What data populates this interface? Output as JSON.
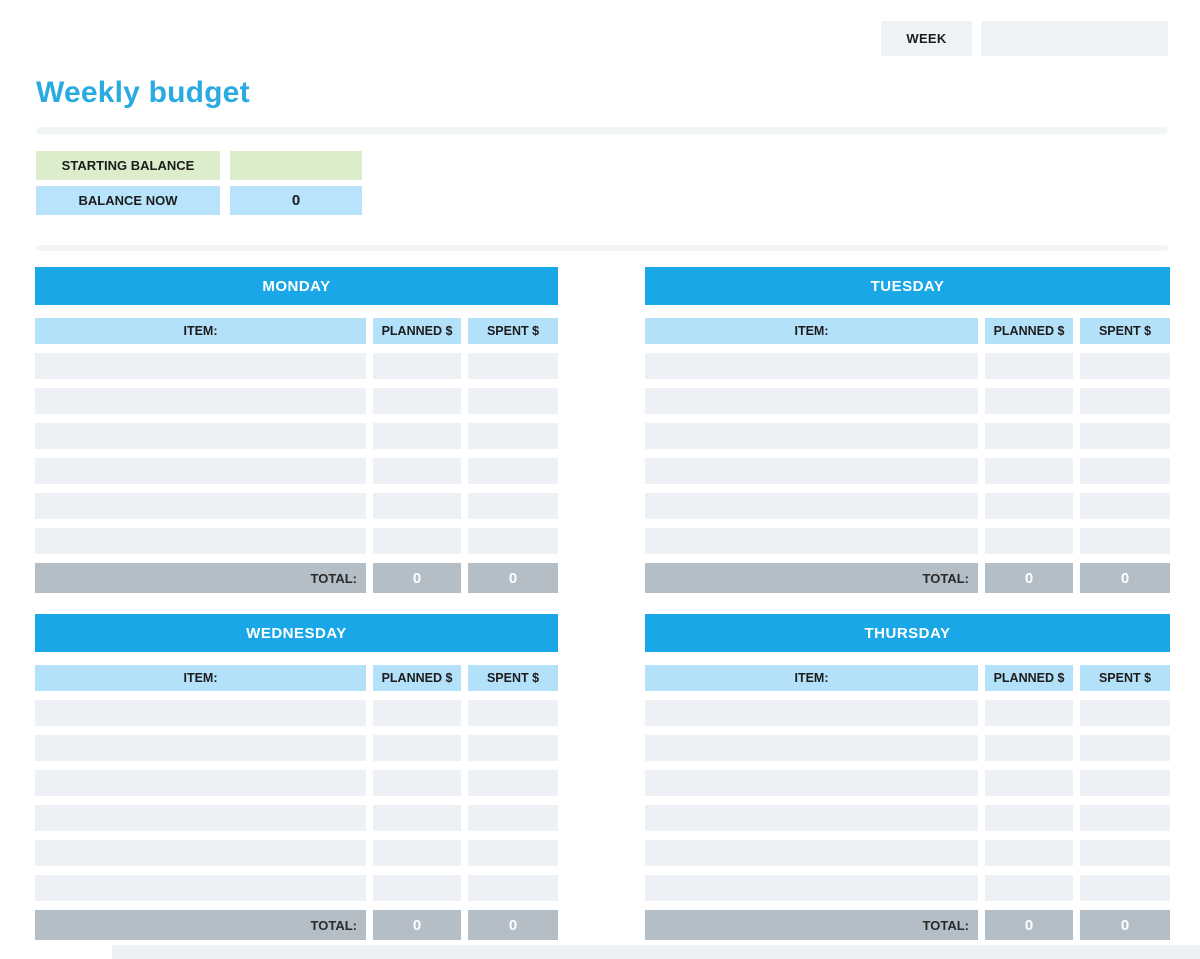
{
  "header": {
    "week_label": "WEEK",
    "week_value": ""
  },
  "title": "Weekly budget",
  "balance": {
    "starting_label": "STARTING BALANCE",
    "starting_value": "",
    "now_label": "BALANCE NOW",
    "now_value": "0"
  },
  "table_template": {
    "item_header": "ITEM:",
    "planned_header": "PLANNED $",
    "spent_header": "SPENT $",
    "total_label": "TOTAL:",
    "empty_rows": 6
  },
  "days": [
    {
      "name": "MONDAY",
      "total_planned": "0",
      "total_spent": "0"
    },
    {
      "name": "TUESDAY",
      "total_planned": "0",
      "total_spent": "0"
    },
    {
      "name": "WEDNESDAY",
      "total_planned": "0",
      "total_spent": "0"
    },
    {
      "name": "THURSDAY",
      "total_planned": "0",
      "total_spent": "0"
    }
  ],
  "colors": {
    "accent_blue": "#1aa7e8",
    "title_blue": "#29abe2",
    "light_blue": "#b3e1f9",
    "balance_blue": "#b7e3fb",
    "row_bg": "#edf1f5",
    "total_gray": "#b3bec6",
    "green": "#dcedcb",
    "week_bg": "#f0f3f6"
  }
}
